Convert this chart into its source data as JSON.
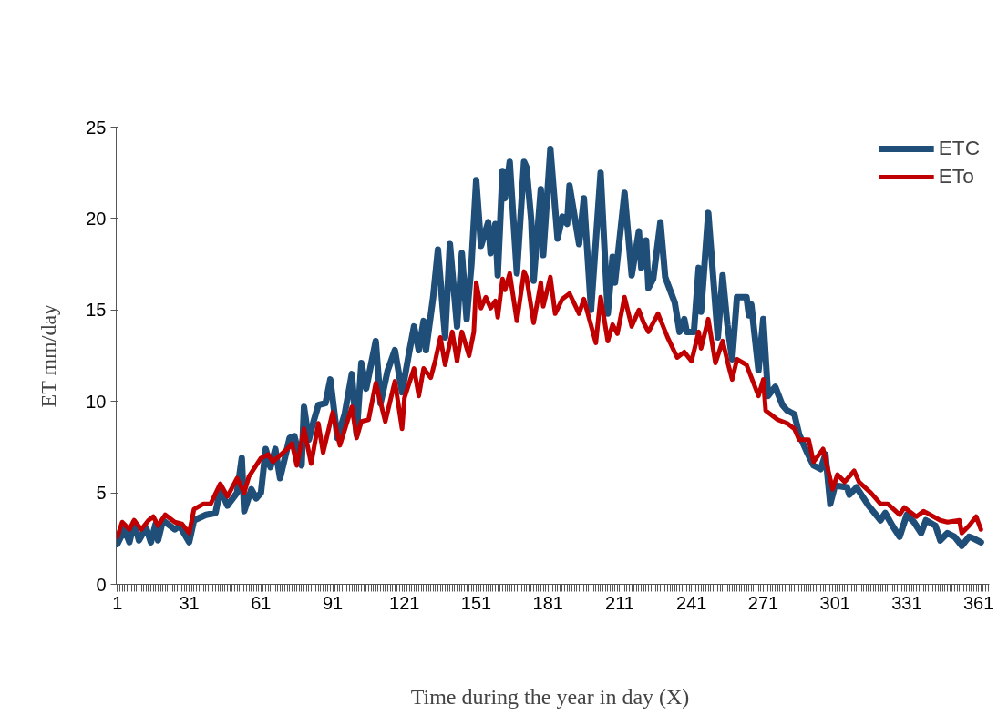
{
  "chart_data": {
    "type": "line",
    "xlabel": "Time during the year in day  (X)",
    "ylabel": "ET mm/day",
    "xlim": [
      0.5,
      365.5
    ],
    "xticks": [
      1,
      31,
      61,
      91,
      121,
      151,
      181,
      211,
      241,
      271,
      301,
      331,
      361
    ],
    "ylim": [
      0,
      25
    ],
    "yticks": [
      0,
      5,
      10,
      15,
      20,
      25
    ],
    "grid": false,
    "legend": "top right",
    "marker": "none",
    "line_style": "solid",
    "series": [
      {
        "name": "ETC",
        "color": "#1f4e79",
        "x": [
          1,
          4,
          6,
          8,
          10,
          13,
          15,
          17,
          18,
          20,
          25,
          27,
          31,
          33,
          38,
          42,
          44,
          47,
          51,
          53,
          54,
          57,
          59,
          61,
          63,
          65,
          67,
          69,
          73,
          75,
          78,
          79,
          81,
          83,
          85,
          88,
          90,
          93,
          96,
          99,
          101,
          103,
          105,
          109,
          111,
          114,
          117,
          120,
          123,
          125,
          127,
          129,
          130,
          133,
          135,
          138,
          140,
          143,
          145,
          147,
          149,
          151,
          153,
          156,
          157,
          159,
          160,
          162,
          163,
          165,
          168,
          171,
          172,
          174,
          175,
          178,
          179,
          182,
          185,
          187,
          189,
          190,
          194,
          196,
          199,
          203,
          206,
          208,
          209,
          213,
          216,
          219,
          220,
          222,
          223,
          225,
          228,
          230,
          234,
          236,
          238,
          239,
          242,
          244,
          245,
          248,
          252,
          254,
          256,
          258,
          260,
          264,
          265,
          266,
          269,
          271,
          273,
          276,
          279,
          281,
          284,
          286,
          289,
          292,
          295,
          297,
          299,
          301,
          306,
          307,
          310,
          315,
          320,
          322,
          325,
          328,
          331,
          334,
          337,
          339,
          343,
          345,
          348,
          351,
          354,
          357,
          359,
          362
        ],
        "values": [
          2.2,
          3.0,
          2.3,
          3.4,
          2.4,
          3.1,
          2.3,
          3.3,
          2.4,
          3.5,
          3.0,
          3.2,
          2.3,
          3.5,
          3.8,
          3.9,
          5.2,
          4.3,
          5.0,
          6.9,
          4.0,
          5.2,
          4.7,
          5.0,
          7.4,
          6.4,
          7.4,
          5.8,
          8.0,
          8.1,
          6.5,
          9.7,
          7.9,
          8.9,
          9.8,
          9.9,
          11.2,
          8.0,
          9.3,
          11.5,
          8.2,
          12.1,
          10.7,
          13.3,
          9.9,
          11.7,
          12.8,
          10.5,
          12.7,
          14.1,
          12.8,
          14.4,
          12.8,
          15.7,
          18.3,
          13.5,
          18.6,
          14.1,
          18.1,
          14.5,
          17.5,
          22.1,
          18.5,
          19.8,
          18.1,
          19.7,
          16.9,
          22.6,
          21.1,
          23.1,
          17.0,
          23.1,
          22.8,
          19.9,
          16.6,
          21.6,
          18.0,
          23.8,
          18.9,
          20.1,
          19.7,
          21.8,
          18.6,
          21.1,
          15.0,
          22.5,
          14.8,
          17.9,
          16.5,
          21.4,
          16.9,
          19.3,
          17.3,
          18.8,
          16.2,
          16.7,
          19.8,
          16.8,
          15.4,
          13.8,
          14.5,
          13.8,
          13.8,
          17.3,
          14.9,
          20.3,
          13.5,
          16.9,
          14.2,
          12.3,
          15.7,
          15.7,
          14.7,
          15.3,
          11.7,
          14.5,
          10.3,
          10.8,
          9.8,
          9.5,
          9.3,
          8.2,
          7.3,
          6.5,
          6.3,
          7.1,
          4.4,
          5.4,
          5.3,
          4.9,
          5.3,
          4.3,
          3.5,
          3.9,
          3.2,
          2.6,
          3.8,
          3.4,
          2.8,
          3.5,
          3.2,
          2.4,
          2.8,
          2.6,
          2.1,
          2.6,
          2.5,
          2.3
        ]
      },
      {
        "name": "ETo",
        "color": "#c00000",
        "x": [
          1,
          3,
          6,
          8,
          11,
          14,
          16,
          18,
          21,
          25,
          28,
          31,
          33,
          37,
          40,
          44,
          47,
          51,
          54,
          56,
          59,
          61,
          64,
          66,
          72,
          74,
          76,
          79,
          82,
          85,
          87,
          91,
          94,
          99,
          101,
          103,
          106,
          109,
          113,
          117,
          120,
          121,
          125,
          127,
          129,
          132,
          134,
          136,
          138,
          141,
          143,
          145,
          148,
          150,
          151,
          153,
          155,
          157,
          159,
          160,
          162,
          163,
          165,
          168,
          171,
          172,
          175,
          178,
          179,
          182,
          184,
          187,
          190,
          194,
          196,
          201,
          203,
          206,
          208,
          210,
          213,
          216,
          219,
          221,
          223,
          227,
          231,
          235,
          238,
          241,
          244,
          245,
          248,
          251,
          254,
          256,
          258,
          260,
          264,
          269,
          271,
          272,
          274,
          277,
          281,
          284,
          286,
          290,
          292,
          296,
          300,
          302,
          305,
          309,
          311,
          316,
          320,
          323,
          328,
          330,
          335,
          338,
          345,
          348,
          353,
          354,
          357,
          360,
          362
        ],
        "values": [
          2.6,
          3.4,
          3.0,
          3.5,
          3.0,
          3.5,
          3.7,
          3.2,
          3.8,
          3.4,
          3.3,
          2.8,
          4.1,
          4.4,
          4.4,
          5.5,
          4.8,
          5.8,
          5.0,
          5.9,
          6.5,
          6.9,
          7.1,
          6.7,
          7.4,
          7.7,
          6.5,
          8.5,
          6.6,
          8.8,
          7.2,
          9.4,
          7.6,
          9.7,
          8.0,
          8.9,
          9.0,
          11.0,
          8.9,
          11.1,
          8.5,
          10.2,
          11.8,
          10.3,
          11.8,
          11.3,
          12.3,
          13.5,
          12.0,
          13.8,
          12.2,
          13.8,
          12.5,
          13.8,
          16.5,
          15.1,
          15.7,
          15.1,
          15.5,
          14.6,
          16.7,
          16.1,
          17.0,
          14.4,
          17.1,
          16.8,
          14.3,
          16.5,
          15.2,
          16.8,
          14.8,
          15.6,
          15.9,
          14.8,
          15.6,
          13.2,
          15.7,
          13.3,
          14.2,
          13.7,
          15.7,
          14.1,
          15.0,
          14.3,
          13.8,
          14.8,
          13.5,
          12.4,
          12.7,
          12.2,
          13.8,
          12.9,
          14.5,
          12.1,
          13.3,
          12.2,
          11.2,
          12.3,
          12.0,
          10.3,
          11.2,
          9.5,
          9.3,
          9.0,
          8.8,
          8.5,
          7.9,
          7.9,
          6.7,
          7.4,
          5.2,
          6.0,
          5.6,
          6.2,
          5.6,
          5.0,
          4.4,
          4.4,
          3.8,
          4.2,
          3.7,
          4.0,
          3.5,
          3.4,
          3.5,
          2.8,
          3.2,
          3.7,
          3.0
        ]
      }
    ]
  }
}
